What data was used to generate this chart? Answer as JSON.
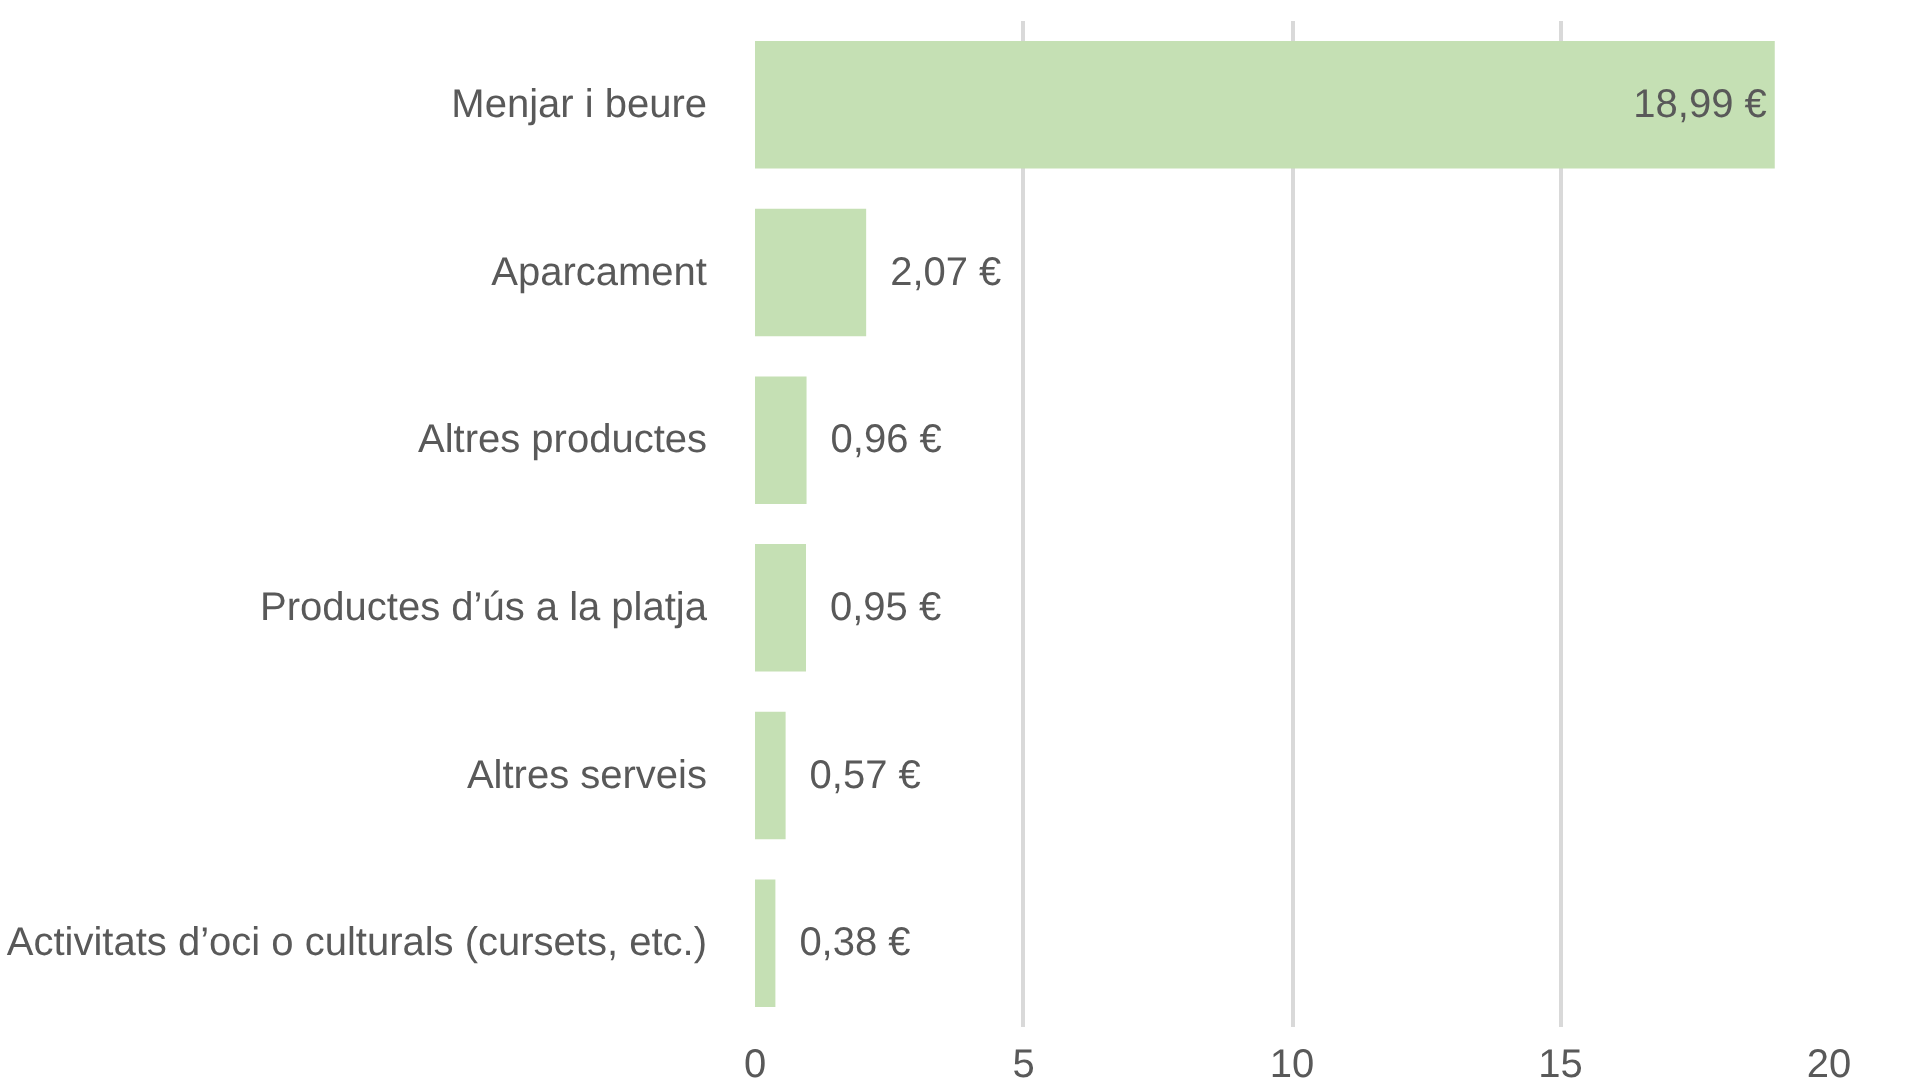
{
  "chart_data": {
    "type": "bar",
    "orientation": "horizontal",
    "categories": [
      "Menjar i beure",
      "Aparcament",
      "Altres productes",
      "Productes d’ús a la platja",
      "Altres serveis",
      "Activitats d’oci o culturals (cursets, etc.)"
    ],
    "values": [
      18.99,
      2.07,
      0.96,
      0.95,
      0.57,
      0.38
    ],
    "value_labels": [
      "18,99 €",
      "2,07 €",
      "0,96 €",
      "0,95 €",
      "0,57 €",
      "0,38 €"
    ],
    "color": "#c5e0b4",
    "xlim": [
      0,
      20
    ],
    "xticks": [
      0,
      5,
      10,
      15,
      20
    ],
    "grid": "x"
  }
}
